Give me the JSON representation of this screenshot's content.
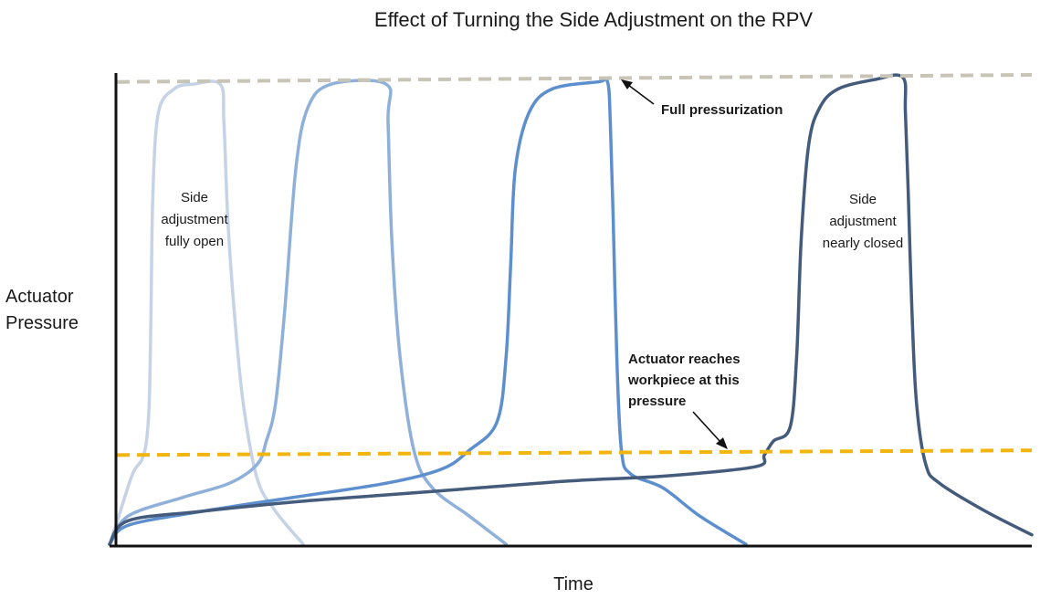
{
  "chart_data": {
    "type": "line",
    "title": "Effect of Turning the Side Adjustment on the RPV",
    "xlabel": "Time",
    "ylabel_lines": [
      "Actuator",
      "Pressure"
    ],
    "xlim": [
      0,
      100
    ],
    "ylim": [
      0,
      100
    ],
    "grid": false,
    "legend": "none",
    "reference_lines": [
      {
        "name": "full-pressurization-line",
        "label": "Full pressurization",
        "y_start": 98.5,
        "y_end": 100,
        "color": "#c8c4b6"
      },
      {
        "name": "workpiece-pressure-line",
        "label": "Actuator reaches workpiece at this pressure",
        "y_start": 19,
        "y_end": 20,
        "color": "#f2b50f"
      }
    ],
    "series": [
      {
        "name": "side-adjustment-fully-open",
        "color": "#c6d3e6",
        "points": [
          [
            0,
            0
          ],
          [
            1,
            6
          ],
          [
            2.5,
            15
          ],
          [
            3.5,
            18
          ],
          [
            4,
            22
          ],
          [
            4.3,
            30
          ],
          [
            4.5,
            50
          ],
          [
            4.7,
            75
          ],
          [
            5.3,
            92
          ],
          [
            7,
            97
          ],
          [
            9,
            98
          ],
          [
            12,
            98
          ],
          [
            12.4,
            90
          ],
          [
            12.8,
            70
          ],
          [
            13.5,
            50
          ],
          [
            14.5,
            30
          ],
          [
            16,
            14
          ],
          [
            18,
            7
          ],
          [
            21,
            0
          ]
        ]
      },
      {
        "name": "curve-2",
        "color": "#8fb0d9",
        "points": [
          [
            0,
            0
          ],
          [
            2,
            6
          ],
          [
            8,
            10
          ],
          [
            13,
            13
          ],
          [
            16,
            17
          ],
          [
            17,
            22
          ],
          [
            18,
            30
          ],
          [
            19,
            50
          ],
          [
            20.2,
            80
          ],
          [
            21.5,
            93
          ],
          [
            24,
            98
          ],
          [
            30,
            98
          ],
          [
            30.2,
            90
          ],
          [
            30.6,
            65
          ],
          [
            31.5,
            40
          ],
          [
            33,
            20
          ],
          [
            35,
            12
          ],
          [
            39,
            6
          ],
          [
            43,
            0
          ]
        ]
      },
      {
        "name": "curve-3",
        "color": "#5d8fcf",
        "points": [
          [
            0,
            0
          ],
          [
            2,
            4
          ],
          [
            10,
            7
          ],
          [
            20,
            10
          ],
          [
            30,
            13
          ],
          [
            36,
            16
          ],
          [
            39,
            20
          ],
          [
            42,
            26
          ],
          [
            43,
            40
          ],
          [
            43.5,
            60
          ],
          [
            44,
            80
          ],
          [
            45.5,
            92
          ],
          [
            48,
            97
          ],
          [
            53,
            98.5
          ],
          [
            54,
            98.5
          ],
          [
            54.3,
            90
          ],
          [
            54.6,
            70
          ],
          [
            55,
            40
          ],
          [
            55.5,
            20
          ],
          [
            56.5,
            15
          ],
          [
            60,
            12
          ],
          [
            64,
            6
          ],
          [
            69,
            0
          ]
        ]
      },
      {
        "name": "side-adjustment-nearly-closed",
        "color": "#445b7c",
        "points": [
          [
            0,
            0
          ],
          [
            2,
            5
          ],
          [
            10,
            7
          ],
          [
            20,
            9
          ],
          [
            30,
            10.5
          ],
          [
            40,
            12
          ],
          [
            50,
            13.5
          ],
          [
            60,
            14.5
          ],
          [
            70,
            16.5
          ],
          [
            71,
            19
          ],
          [
            72,
            22
          ],
          [
            73.8,
            25
          ],
          [
            74.5,
            40
          ],
          [
            75,
            65
          ],
          [
            75.8,
            85
          ],
          [
            77,
            93
          ],
          [
            79,
            97
          ],
          [
            83,
            99
          ],
          [
            86,
            99.5
          ],
          [
            86.3,
            92
          ],
          [
            86.6,
            75
          ],
          [
            87,
            50
          ],
          [
            87.5,
            30
          ],
          [
            88.5,
            17
          ],
          [
            90,
            13
          ],
          [
            95,
            7
          ],
          [
            100,
            2
          ]
        ]
      }
    ],
    "annotations": [
      {
        "name": "label-fully-open",
        "lines": [
          "Side",
          "adjustment",
          "fully open"
        ],
        "bold": false
      },
      {
        "name": "label-nearly-closed",
        "lines": [
          "Side",
          "adjustment",
          "nearly closed"
        ],
        "bold": false
      },
      {
        "name": "label-full-pressurization",
        "lines": [
          "Full pressurization"
        ],
        "bold": true
      },
      {
        "name": "label-workpiece",
        "lines": [
          "Actuator reaches",
          "workpiece at this",
          "pressure"
        ],
        "bold": true
      }
    ]
  }
}
